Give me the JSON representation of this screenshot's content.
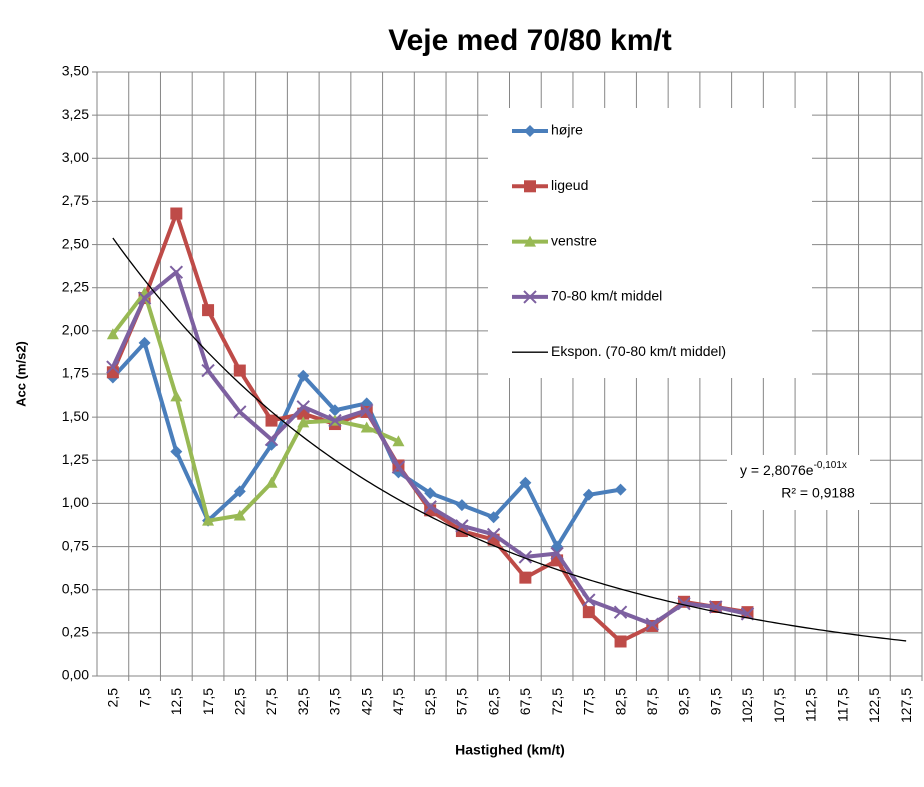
{
  "chart_data": {
    "type": "line",
    "title": "Veje med 70/80 km/t",
    "x_label": "Hastighed (km/t)",
    "y_label": "Acc (m/s2)",
    "categories": [
      "2,5",
      "7,5",
      "12,5",
      "17,5",
      "22,5",
      "27,5",
      "32,5",
      "37,5",
      "42,5",
      "47,5",
      "52,5",
      "57,5",
      "62,5",
      "67,5",
      "72,5",
      "77,5",
      "82,5",
      "87,5",
      "92,5",
      "97,5",
      "102,5",
      "107,5",
      "112,5",
      "117,5",
      "122,5",
      "127,5"
    ],
    "series": [
      {
        "name": "højre",
        "color": "#4a7ebb",
        "marker": "diamond",
        "values": [
          1.73,
          1.93,
          1.3,
          0.9,
          1.07,
          1.34,
          1.74,
          1.54,
          1.58,
          1.18,
          1.06,
          0.99,
          0.92,
          1.12,
          0.75,
          1.05,
          1.08,
          null,
          null,
          null,
          null,
          null,
          null,
          null,
          null,
          null
        ]
      },
      {
        "name": "ligeud",
        "color": "#be4b48",
        "marker": "square",
        "values": [
          1.76,
          2.19,
          2.68,
          2.12,
          1.77,
          1.48,
          1.52,
          1.46,
          1.53,
          1.22,
          0.96,
          0.84,
          0.79,
          0.57,
          0.67,
          0.37,
          0.2,
          0.29,
          0.43,
          0.4,
          0.37,
          null,
          null,
          null,
          null,
          null
        ]
      },
      {
        "name": "venstre",
        "color": "#98b954",
        "marker": "triangle",
        "values": [
          1.98,
          2.22,
          1.62,
          0.9,
          0.93,
          1.12,
          1.47,
          1.48,
          1.44,
          1.36,
          null,
          null,
          null,
          null,
          null,
          null,
          null,
          null,
          null,
          null,
          null,
          null,
          null,
          null,
          null,
          null
        ]
      },
      {
        "name": "70-80 km/t middel",
        "color": "#7d60a0",
        "marker": "x",
        "values": [
          1.79,
          2.19,
          2.34,
          1.77,
          1.53,
          1.37,
          1.56,
          1.48,
          1.54,
          1.21,
          0.98,
          0.87,
          0.82,
          0.69,
          0.71,
          0.44,
          0.37,
          0.3,
          0.42,
          0.4,
          0.36,
          null,
          null,
          null,
          null,
          null
        ]
      }
    ],
    "trendline": {
      "name": "Ekspon. (70-80 km/t middel)",
      "color": "#000000",
      "a": 2.8076,
      "b": -0.101,
      "equation": "y = 2,8076e",
      "exponent": "-0,101x",
      "r_squared": "R² = 0,9188"
    },
    "ylim": [
      0,
      3.5
    ],
    "yticks": [
      {
        "value": 0,
        "label": "0,00"
      },
      {
        "value": 0.25,
        "label": "0,25"
      },
      {
        "value": 0.5,
        "label": "0,50"
      },
      {
        "value": 0.75,
        "label": "0,75"
      },
      {
        "value": 1,
        "label": "1,00"
      },
      {
        "value": 1.25,
        "label": "1,25"
      },
      {
        "value": 1.5,
        "label": "1,50"
      },
      {
        "value": 1.75,
        "label": "1,75"
      },
      {
        "value": 2,
        "label": "2,00"
      },
      {
        "value": 2.25,
        "label": "2,25"
      },
      {
        "value": 2.5,
        "label": "2,50"
      },
      {
        "value": 2.75,
        "label": "2,75"
      },
      {
        "value": 3,
        "label": "3,00"
      },
      {
        "value": 3.25,
        "label": "3,25"
      },
      {
        "value": 3.5,
        "label": "3,50"
      }
    ],
    "grid": true,
    "legend": "upper right"
  }
}
